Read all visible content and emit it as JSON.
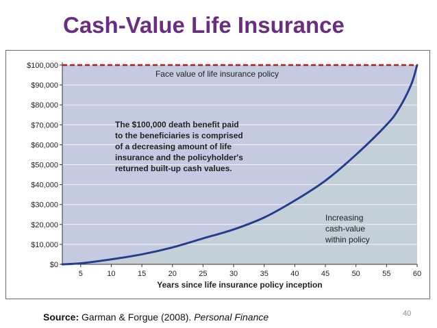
{
  "slide": {
    "title": "Cash-Value Life Insurance",
    "source_label": "Source:",
    "source_text": " Garman & Forgue (2008). ",
    "source_book": "Personal Finance",
    "page_number": "40"
  },
  "chart_data": {
    "type": "area",
    "title": "",
    "xlabel": "Years since life insurance policy inception",
    "ylabel": "",
    "xlim": [
      2,
      60
    ],
    "ylim": [
      0,
      100000
    ],
    "x_ticks": [
      5,
      10,
      15,
      20,
      25,
      30,
      35,
      40,
      45,
      50,
      55,
      60
    ],
    "x_tick_labels": [
      "5",
      "10",
      "15",
      "20",
      "25",
      "30",
      "35",
      "40",
      "45",
      "50",
      "55",
      "60"
    ],
    "y_ticks": [
      0,
      10000,
      20000,
      30000,
      40000,
      50000,
      60000,
      70000,
      80000,
      90000,
      100000
    ],
    "y_tick_labels": [
      "$0",
      "$10,000",
      "$20,000",
      "$30,000",
      "$40,000",
      "$50,000",
      "$60,000",
      "$70,000",
      "$80,000",
      "$90,000",
      "$100,000"
    ],
    "grid": true,
    "face_value": 100000,
    "series": [
      {
        "x": [
          2,
          5,
          10,
          15,
          20,
          25,
          30,
          35,
          40,
          45,
          50,
          55,
          57,
          59,
          60
        ],
        "values": [
          0,
          500,
          2500,
          5000,
          8500,
          13000,
          17500,
          23500,
          32000,
          42000,
          55000,
          70000,
          78000,
          90000,
          100000
        ]
      }
    ],
    "annotations": {
      "face_value_label": "Face value of life insurance policy",
      "death_benefit_lines": [
        "The $100,000 death benefit paid",
        "to the beneficiaries is comprised",
        "of a decreasing amount of  life",
        "insurance and the policyholder's",
        "returned built-up cash values."
      ],
      "cash_value_lines": [
        "Increasing",
        "cash-value",
        "within policy"
      ]
    },
    "colors": {
      "insurance_area": "#c4cbe1",
      "cash_value_area": "#c4d0d8",
      "curve": "#243e8c",
      "face_value_line": "#b01c1c",
      "grid": "#ffffff",
      "text": "#222222"
    }
  }
}
